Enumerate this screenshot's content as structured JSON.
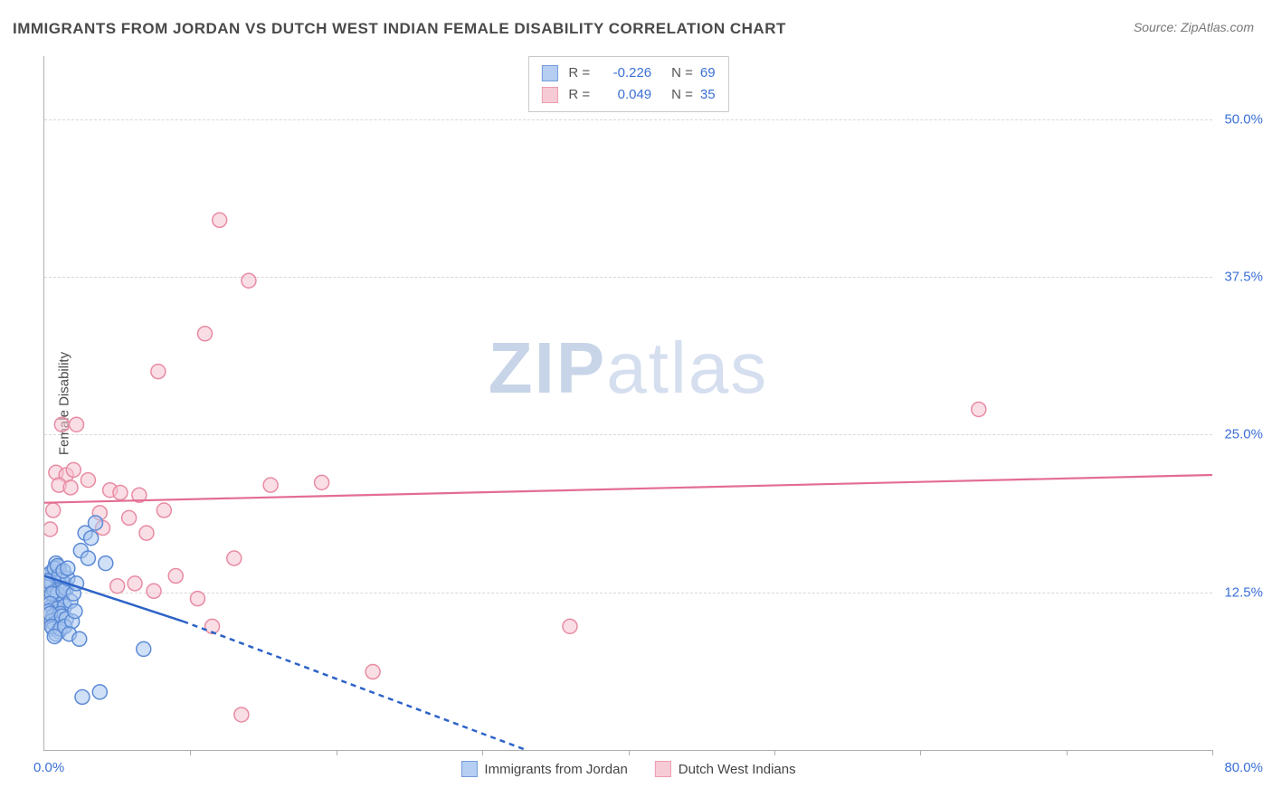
{
  "title": "IMMIGRANTS FROM JORDAN VS DUTCH WEST INDIAN FEMALE DISABILITY CORRELATION CHART",
  "source": "Source: ZipAtlas.com",
  "ylabel": "Female Disability",
  "watermark_a": "ZIP",
  "watermark_b": "atlas",
  "chart": {
    "type": "scatter",
    "xlim": [
      0,
      80
    ],
    "ylim": [
      0,
      55
    ],
    "xaxis_min_label": "0.0%",
    "xaxis_max_label": "80.0%",
    "yticks": [
      {
        "v": 12.5,
        "label": "12.5%"
      },
      {
        "v": 25.0,
        "label": "25.0%"
      },
      {
        "v": 37.5,
        "label": "37.5%"
      },
      {
        "v": 50.0,
        "label": "50.0%"
      }
    ],
    "xticks": [
      10,
      20,
      30,
      40,
      50,
      60,
      70,
      80
    ],
    "background_color": "#ffffff",
    "grid_color": "#d8d8d8",
    "axis_color": "#b0b0b0",
    "marker_radius": 8,
    "marker_stroke_width": 1.5,
    "series": [
      {
        "name": "Immigrants from Jordan",
        "color_fill": "#a9c6ef",
        "color_stroke": "#5b8ad6",
        "fill_opacity": 0.55,
        "R_label": "R =",
        "R": "-0.226",
        "N_label": "N =",
        "N": "69",
        "trend": {
          "solid": {
            "x1": 0,
            "y1": 13.8,
            "x2": 9.5,
            "y2": 10.2
          },
          "dashed": {
            "x1": 9.5,
            "y1": 10.2,
            "x2": 33,
            "y2": 0
          },
          "color": "#2d63c8",
          "width": 2.5,
          "dash": "6,5"
        },
        "points": [
          [
            0.3,
            13.0
          ],
          [
            0.6,
            12.5
          ],
          [
            0.4,
            13.5
          ],
          [
            0.8,
            12.2
          ],
          [
            1.0,
            12.8
          ],
          [
            0.5,
            13.2
          ],
          [
            0.7,
            11.8
          ],
          [
            1.2,
            12.0
          ],
          [
            0.9,
            13.6
          ],
          [
            0.6,
            14.2
          ],
          [
            1.1,
            13.0
          ],
          [
            0.3,
            12.0
          ],
          [
            0.5,
            11.4
          ],
          [
            0.8,
            13.8
          ],
          [
            1.0,
            14.5
          ],
          [
            1.4,
            13.2
          ],
          [
            0.4,
            14.0
          ],
          [
            0.7,
            12.6
          ],
          [
            1.3,
            11.6
          ],
          [
            0.9,
            12.4
          ],
          [
            0.2,
            13.4
          ],
          [
            0.6,
            11.2
          ],
          [
            1.1,
            14.0
          ],
          [
            0.8,
            14.8
          ],
          [
            0.5,
            12.4
          ],
          [
            1.0,
            11.0
          ],
          [
            0.4,
            11.6
          ],
          [
            1.2,
            13.4
          ],
          [
            0.7,
            14.4
          ],
          [
            0.9,
            11.2
          ],
          [
            1.5,
            12.8
          ],
          [
            0.3,
            11.0
          ],
          [
            0.6,
            10.6
          ],
          [
            1.3,
            12.6
          ],
          [
            0.8,
            10.4
          ],
          [
            1.0,
            13.8
          ],
          [
            1.4,
            11.4
          ],
          [
            0.5,
            10.2
          ],
          [
            1.1,
            10.8
          ],
          [
            0.7,
            10.0
          ],
          [
            1.6,
            13.6
          ],
          [
            0.4,
            10.8
          ],
          [
            0.9,
            14.6
          ],
          [
            1.2,
            10.6
          ],
          [
            0.6,
            9.6
          ],
          [
            1.0,
            9.4
          ],
          [
            1.5,
            10.4
          ],
          [
            0.8,
            9.2
          ],
          [
            1.3,
            14.2
          ],
          [
            0.5,
            9.8
          ],
          [
            1.8,
            11.8
          ],
          [
            1.1,
            9.6
          ],
          [
            0.7,
            9.0
          ],
          [
            1.4,
            9.8
          ],
          [
            2.0,
            12.4
          ],
          [
            1.6,
            14.4
          ],
          [
            2.2,
            13.2
          ],
          [
            1.9,
            10.2
          ],
          [
            2.5,
            15.8
          ],
          [
            2.8,
            17.2
          ],
          [
            3.2,
            16.8
          ],
          [
            1.7,
            9.2
          ],
          [
            2.1,
            11.0
          ],
          [
            3.5,
            18.0
          ],
          [
            2.4,
            8.8
          ],
          [
            3.0,
            15.2
          ],
          [
            4.2,
            14.8
          ],
          [
            6.8,
            8.0
          ],
          [
            2.6,
            4.2
          ],
          [
            3.8,
            4.6
          ]
        ]
      },
      {
        "name": "Dutch West Indians",
        "color_fill": "#f6c3cf",
        "color_stroke": "#e88ba3",
        "fill_opacity": 0.55,
        "R_label": "R =",
        "R": "0.049",
        "N_label": "N =",
        "N": "35",
        "trend": {
          "solid": {
            "x1": 0,
            "y1": 19.6,
            "x2": 80,
            "y2": 21.8
          },
          "color": "#e36d92",
          "width": 2.2
        },
        "points": [
          [
            1.2,
            25.8
          ],
          [
            2.2,
            25.8
          ],
          [
            0.8,
            22.0
          ],
          [
            1.5,
            21.8
          ],
          [
            1.0,
            21.0
          ],
          [
            1.8,
            20.8
          ],
          [
            2.0,
            22.2
          ],
          [
            0.6,
            19.0
          ],
          [
            0.4,
            17.5
          ],
          [
            3.0,
            21.4
          ],
          [
            4.5,
            20.6
          ],
          [
            5.2,
            20.4
          ],
          [
            3.8,
            18.8
          ],
          [
            4.0,
            17.6
          ],
          [
            5.8,
            18.4
          ],
          [
            6.5,
            20.2
          ],
          [
            7.0,
            17.2
          ],
          [
            8.2,
            19.0
          ],
          [
            5.0,
            13.0
          ],
          [
            6.2,
            13.2
          ],
          [
            7.5,
            12.6
          ],
          [
            9.0,
            13.8
          ],
          [
            10.5,
            12.0
          ],
          [
            11.5,
            9.8
          ],
          [
            13.0,
            15.2
          ],
          [
            15.5,
            21.0
          ],
          [
            14.0,
            37.2
          ],
          [
            12.0,
            42.0
          ],
          [
            11.0,
            33.0
          ],
          [
            7.8,
            30.0
          ],
          [
            22.5,
            6.2
          ],
          [
            13.5,
            2.8
          ],
          [
            36.0,
            9.8
          ],
          [
            64.0,
            27.0
          ],
          [
            19.0,
            21.2
          ]
        ]
      }
    ]
  }
}
